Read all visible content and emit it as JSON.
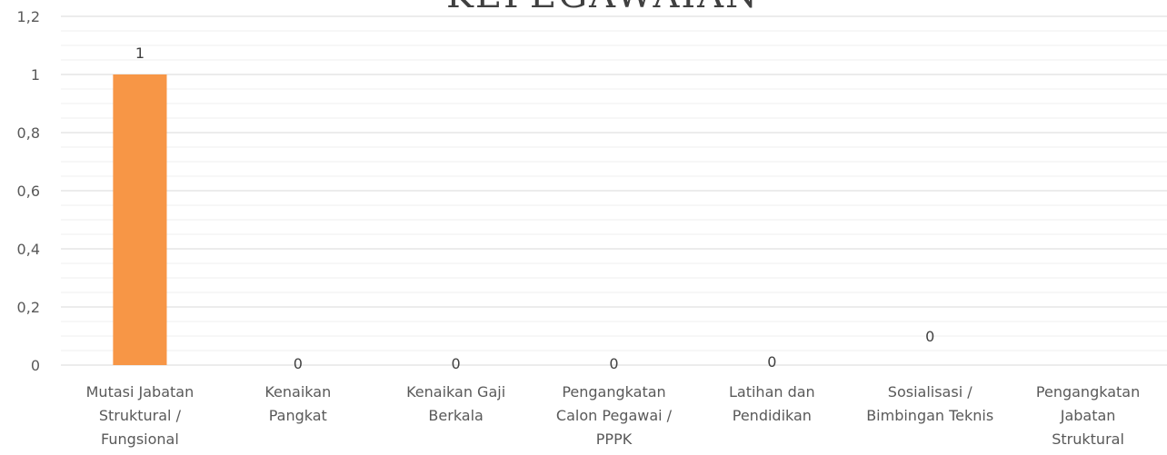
{
  "chart_data": {
    "type": "bar",
    "title": "KEPEGAWAIAN",
    "categories": [
      "Mutasi Jabatan Struktural / Fungsional",
      "Kenaikan Pangkat",
      "Kenaikan Gaji Berkala",
      "Pengangkatan Calon Pegawai / PPPK",
      "Latihan dan Pendidikan",
      "Sosialisasi / Bimbingan Teknis",
      "Pengangkatan Jabatan Struktural"
    ],
    "category_lines": [
      [
        "Mutasi Jabatan",
        "Struktural /",
        "Fungsional"
      ],
      [
        "Kenaikan",
        "Pangkat"
      ],
      [
        "Kenaikan Gaji",
        "Berkala"
      ],
      [
        "Pengangkatan",
        "Calon Pegawai /",
        "PPPK"
      ],
      [
        "Latihan dan",
        "Pendidikan"
      ],
      [
        "Sosialisasi /",
        "Bimbingan Teknis"
      ],
      [
        "Pengangkatan",
        "Jabatan",
        "Struktural"
      ]
    ],
    "values": [
      1,
      0,
      0,
      0,
      0,
      0,
      null
    ],
    "data_labels": [
      "1",
      "0",
      "0",
      "0",
      "0",
      "0",
      ""
    ],
    "y_ticks": [
      "0",
      "0,2",
      "0,4",
      "0,6",
      "0,8",
      "1",
      "1,2"
    ],
    "ylim": [
      0,
      1.2
    ],
    "grid": true,
    "bar_color": "#F79646",
    "grid_color": "#D9D9D9",
    "minor_grid_color": "#EFEFEF"
  }
}
